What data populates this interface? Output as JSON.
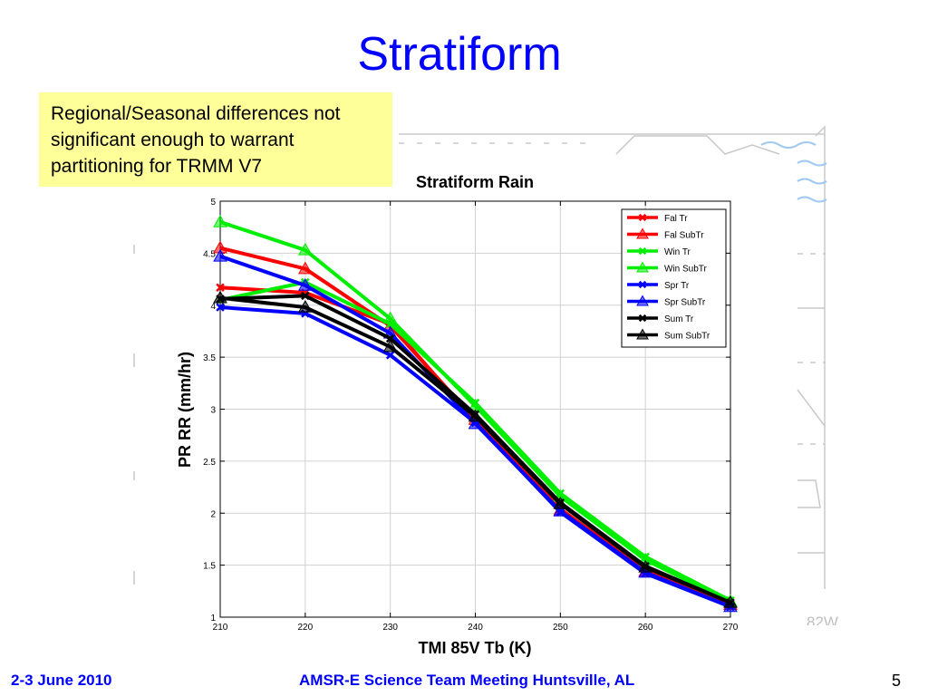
{
  "slide": {
    "title": "Stratiform",
    "note": "Regional/Seasonal differences not significant enough to warrant partitioning for TRMM V7",
    "footer_date": "2-3 June 2010",
    "footer_meeting": "AMSR-E Science Team Meeting  Huntsville, AL",
    "page_number": "5",
    "map_label": "82W"
  },
  "chart_data": {
    "type": "line",
    "title": "Stratiform Rain",
    "xlabel": "TMI 85V Tb (K)",
    "ylabel": "PR RR (mm/hr)",
    "xlim": [
      210,
      270
    ],
    "ylim": [
      1,
      5
    ],
    "xticks": [
      "210",
      "220",
      "230",
      "240",
      "250",
      "260",
      "270"
    ],
    "yticks": [
      "1",
      "1.5",
      "2",
      "2.5",
      "3",
      "3.5",
      "4",
      "4.5",
      "5"
    ],
    "grid": true,
    "legend_position": "top-right",
    "x": [
      210,
      220,
      230,
      240,
      250,
      260,
      270
    ],
    "series": [
      {
        "name": "Fal Tr",
        "color": "#ff0000",
        "marker": "x",
        "values": [
          4.17,
          4.12,
          3.82,
          2.88,
          2.04,
          1.45,
          1.13
        ]
      },
      {
        "name": "Fal SubTr",
        "color": "#ff0000",
        "marker": "triangle",
        "values": [
          4.55,
          4.35,
          3.8,
          2.9,
          2.03,
          1.44,
          1.12
        ]
      },
      {
        "name": "Win Tr",
        "color": "#00ee00",
        "marker": "x",
        "values": [
          4.05,
          4.22,
          3.82,
          3.06,
          2.19,
          1.58,
          1.16
        ]
      },
      {
        "name": "Win SubTr",
        "color": "#00ee00",
        "marker": "triangle",
        "values": [
          4.8,
          4.53,
          3.87,
          3.03,
          2.16,
          1.55,
          1.15
        ]
      },
      {
        "name": "Spr Tr",
        "color": "#0000ff",
        "marker": "x",
        "values": [
          3.98,
          3.92,
          3.52,
          2.87,
          2.01,
          1.42,
          1.1
        ]
      },
      {
        "name": "Spr SubTr",
        "color": "#0000ff",
        "marker": "triangle",
        "values": [
          4.47,
          4.19,
          3.73,
          2.86,
          2.02,
          1.43,
          1.1
        ]
      },
      {
        "name": "Sum Tr",
        "color": "#000000",
        "marker": "x",
        "values": [
          4.06,
          4.09,
          3.68,
          2.95,
          2.1,
          1.49,
          1.14
        ]
      },
      {
        "name": "Sum SubTr",
        "color": "#000000",
        "marker": "triangle",
        "values": [
          4.07,
          3.98,
          3.6,
          2.93,
          2.09,
          1.48,
          1.14
        ]
      }
    ]
  }
}
